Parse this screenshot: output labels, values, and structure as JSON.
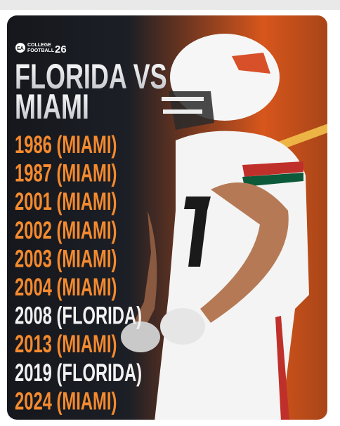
{
  "header": {
    "logo_badge": "EA",
    "logo_line1": "COLLEGE",
    "logo_line2": "FOOTBALL",
    "logo_number": "26"
  },
  "title_lines": [
    "FLORIDA VS",
    "MIAMI"
  ],
  "results": [
    {
      "label": "1986 (MIAMI)",
      "color": "#f58a2e"
    },
    {
      "label": "1987 (MIAMI)",
      "color": "#f58a2e"
    },
    {
      "label": "2001 (MIAMI)",
      "color": "#f58a2e"
    },
    {
      "label": "2002 (MIAMI)",
      "color": "#f58a2e"
    },
    {
      "label": "2003 (MIAMI)",
      "color": "#f58a2e"
    },
    {
      "label": "2004 (MIAMI)",
      "color": "#f58a2e"
    },
    {
      "label": "2008 (FLORIDA)",
      "color": "#f2f2f2"
    },
    {
      "label": "2013 (MIAMI)",
      "color": "#f58a2e"
    },
    {
      "label": "2019 (FLORIDA)",
      "color": "#f2f2f2"
    },
    {
      "label": "2024 (MIAMI)",
      "color": "#f58a2e"
    }
  ]
}
